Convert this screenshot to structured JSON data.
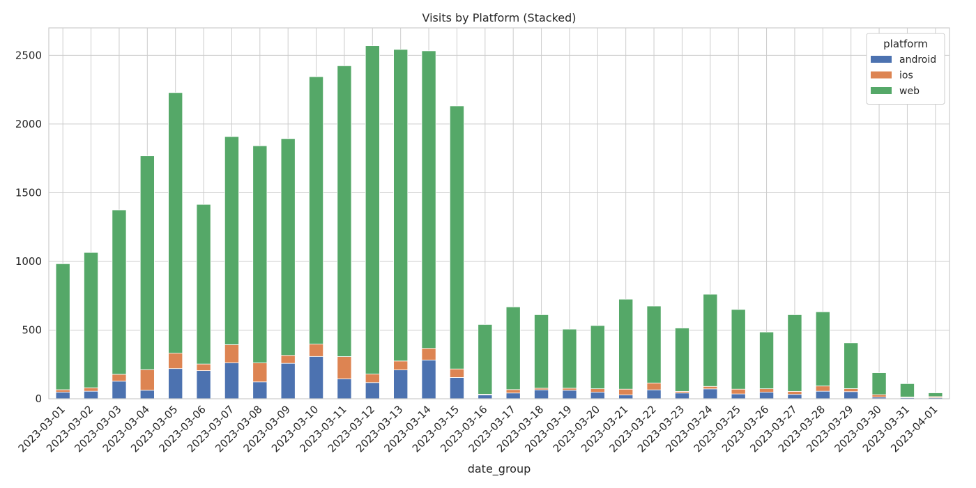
{
  "chart_data": {
    "type": "bar",
    "stacked": true,
    "title": "Visits by Platform (Stacked)",
    "xlabel": "date_group",
    "ylabel": "",
    "ylim": [
      0,
      2700
    ],
    "yticks": [
      0,
      500,
      1000,
      1500,
      2000,
      2500
    ],
    "grid": true,
    "legend_title": "platform",
    "legend_position": "top-right",
    "categories": [
      "2023-03-01",
      "2023-03-02",
      "2023-03-03",
      "2023-03-04",
      "2023-03-05",
      "2023-03-06",
      "2023-03-07",
      "2023-03-08",
      "2023-03-09",
      "2023-03-10",
      "2023-03-11",
      "2023-03-12",
      "2023-03-13",
      "2023-03-14",
      "2023-03-15",
      "2023-03-16",
      "2023-03-17",
      "2023-03-18",
      "2023-03-19",
      "2023-03-20",
      "2023-03-21",
      "2023-03-22",
      "2023-03-23",
      "2023-03-24",
      "2023-03-25",
      "2023-03-26",
      "2023-03-27",
      "2023-03-28",
      "2023-03-29",
      "2023-03-30",
      "2023-03-31",
      "2023-04-01"
    ],
    "series": [
      {
        "name": "android",
        "color": "#4c72b0",
        "values": [
          48,
          55,
          128,
          62,
          220,
          205,
          262,
          123,
          258,
          308,
          145,
          118,
          210,
          282,
          155,
          28,
          42,
          65,
          62,
          48,
          28,
          65,
          42,
          72,
          35,
          48,
          32,
          55,
          52,
          12,
          8,
          8
        ]
      },
      {
        "name": "ios",
        "color": "#dd8452",
        "values": [
          18,
          25,
          50,
          150,
          112,
          48,
          132,
          138,
          58,
          90,
          162,
          62,
          65,
          85,
          62,
          5,
          25,
          12,
          15,
          25,
          42,
          50,
          12,
          18,
          35,
          25,
          22,
          38,
          22,
          18,
          5,
          8
        ]
      },
      {
        "name": "web",
        "color": "#55a868",
        "values": [
          917,
          985,
          1197,
          1556,
          1897,
          1162,
          1515,
          1581,
          1578,
          1947,
          2117,
          2390,
          2268,
          2166,
          1915,
          508,
          602,
          535,
          430,
          460,
          655,
          560,
          461,
          671,
          580,
          413,
          558,
          540,
          333,
          160,
          97,
          27
        ]
      }
    ]
  }
}
